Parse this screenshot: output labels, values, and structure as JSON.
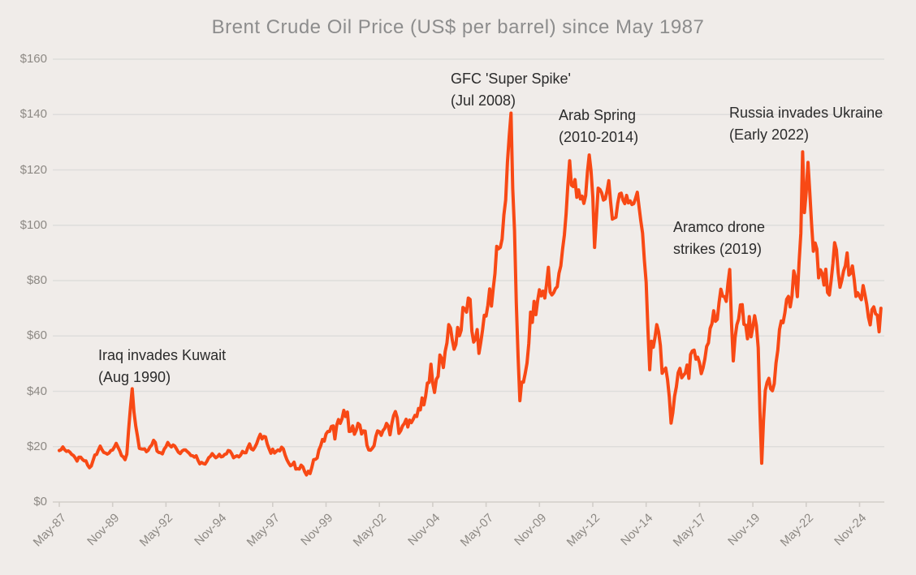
{
  "title": "Brent Crude Oil Price (US$ per barrel) since May 1987",
  "colors": {
    "background": "#f0ece9",
    "line": "#f84915",
    "grid": "#dedddb",
    "axis": "#d2cec9",
    "tick_label": "#8d8984",
    "title": "#8d8d8d",
    "annotation": "#2b2b2b"
  },
  "annotations": {
    "iraq": {
      "line1": "Iraq invades Kuwait",
      "line2": "(Aug 1990)"
    },
    "gfc": {
      "line1": "GFC 'Super Spike'",
      "line2": "(Jul 2008)"
    },
    "arab": {
      "line1": "Arab Spring",
      "line2": "(2010-2014)"
    },
    "aramco": {
      "line1": "Aramco drone",
      "line2": "strikes (2019)"
    },
    "russia": {
      "line1": "Russia invades Ukraine",
      "line2": "(Early 2022)"
    }
  },
  "chart_data": {
    "type": "line",
    "title": "Brent Crude Oil Price (US$ per barrel) since May 1987",
    "xlabel": "",
    "ylabel": "US$ per barrel",
    "ylim": [
      0,
      160
    ],
    "y_tick_step": 20,
    "y_tick_labels": [
      "$0",
      "$20",
      "$40",
      "$60",
      "$80",
      "$100",
      "$120",
      "$140",
      "$160"
    ],
    "x_tick_labels": [
      "May-87",
      "Nov-89",
      "May-92",
      "Nov-94",
      "May-97",
      "Nov-99",
      "May-02",
      "Nov-04",
      "May-07",
      "Nov-09",
      "May-12",
      "Nov-14",
      "May-17",
      "Nov-19",
      "May-22",
      "Nov-24"
    ],
    "x_tick_every_months": 30,
    "x_range": [
      "May-1987",
      "Nov-2025"
    ],
    "frequency": "monthly",
    "grid": "horizontal-only",
    "legend": "none",
    "series": [
      {
        "name": "Brent crude oil price (US$/bbl)",
        "start": "1987-05",
        "values": [
          18.6,
          18.9,
          19.9,
          18.9,
          18.3,
          18.5,
          18.0,
          17.2,
          16.8,
          15.9,
          14.8,
          16.2,
          16.2,
          15.4,
          14.9,
          14.9,
          13.3,
          12.4,
          13.0,
          15.0,
          17.0,
          17.2,
          18.8,
          20.2,
          18.9,
          17.9,
          17.7,
          17.3,
          17.7,
          18.6,
          18.8,
          19.9,
          21.2,
          19.8,
          18.5,
          16.8,
          16.3,
          15.3,
          17.3,
          26.2,
          34.0,
          40.9,
          32.5,
          27.4,
          23.6,
          19.4,
          19.2,
          19.1,
          19.2,
          18.2,
          18.7,
          19.9,
          20.6,
          22.3,
          21.5,
          18.4,
          17.9,
          17.8,
          17.4,
          19.1,
          20.0,
          21.5,
          20.5,
          19.9,
          20.6,
          20.2,
          19.1,
          18.0,
          17.5,
          18.4,
          18.8,
          18.8,
          18.2,
          17.6,
          16.8,
          16.7,
          16.2,
          16.7,
          15.1,
          13.8,
          14.3,
          13.9,
          13.7,
          14.7,
          16.0,
          16.5,
          17.5,
          16.7,
          16.0,
          16.4,
          17.2,
          16.3,
          16.5,
          17.2,
          17.4,
          18.6,
          18.4,
          17.4,
          16.0,
          16.4,
          16.7,
          16.3,
          17.0,
          18.3,
          17.8,
          17.8,
          19.6,
          21.0,
          19.2,
          18.8,
          19.8,
          21.1,
          23.0,
          24.5,
          22.8,
          23.7,
          23.5,
          20.9,
          19.2,
          17.6,
          19.1,
          17.7,
          18.3,
          18.8,
          18.5,
          19.8,
          19.2,
          17.0,
          15.3,
          14.1,
          13.1,
          13.5,
          14.4,
          11.9,
          12.0,
          11.9,
          13.3,
          12.7,
          11.0,
          9.8,
          11.1,
          10.3,
          12.5,
          15.3,
          15.4,
          15.9,
          18.8,
          20.3,
          22.6,
          22.0,
          24.6,
          25.5,
          25.5,
          27.3,
          27.5,
          22.8,
          27.7,
          29.8,
          28.4,
          30.1,
          33.1,
          30.9,
          32.5,
          25.5,
          25.6,
          27.5,
          24.5,
          25.9,
          28.4,
          27.8,
          24.6,
          25.7,
          25.6,
          20.5,
          18.8,
          18.7,
          19.4,
          20.3,
          23.7,
          25.7,
          25.4,
          24.1,
          25.8,
          26.6,
          28.4,
          27.5,
          24.3,
          28.3,
          31.2,
          32.7,
          30.5,
          24.8,
          25.8,
          27.5,
          28.4,
          29.9,
          27.1,
          29.6,
          28.7,
          29.9,
          31.3,
          30.9,
          33.8,
          33.3,
          37.6,
          35.1,
          38.2,
          43.0,
          43.2,
          49.8,
          42.9,
          39.6,
          44.3,
          45.4,
          53.1,
          51.9,
          48.6,
          54.4,
          57.5,
          64.1,
          62.9,
          58.5,
          55.2,
          56.9,
          63.1,
          60.1,
          62.1,
          70.3,
          69.8,
          68.6,
          73.7,
          73.2,
          61.7,
          57.8,
          58.9,
          62.3,
          53.7,
          57.6,
          62.1,
          67.5,
          67.2,
          71.1,
          77.0,
          70.8,
          77.2,
          82.5,
          92.4,
          91.5,
          92.0,
          95.0,
          103.7,
          109.1,
          122.8,
          132.3,
          140.5,
          113.2,
          98.1,
          71.9,
          52.5,
          36.6,
          43.3,
          43.3,
          46.5,
          50.2,
          57.3,
          68.6,
          64.9,
          72.5,
          67.7,
          72.8,
          76.7,
          74.5,
          76.2,
          73.7,
          78.8,
          84.8,
          75.9,
          74.8,
          75.6,
          77.1,
          77.8,
          82.7,
          85.3,
          91.4,
          96.5,
          104.0,
          114.6,
          123.3,
          114.5,
          114.0,
          116.5,
          110.1,
          112.8,
          109.5,
          110.5,
          107.9,
          110.7,
          119.3,
          125.4,
          119.8,
          110.3,
          92.0,
          102.6,
          113.4,
          112.9,
          111.7,
          109.1,
          109.5,
          112.3,
          116.1,
          108.5,
          102.2,
          102.6,
          102.9,
          107.9,
          111.3,
          111.6,
          109.1,
          107.8,
          110.8,
          108.1,
          108.8,
          107.5,
          107.8,
          109.7,
          111.9,
          106.8,
          101.6,
          97.1,
          87.4,
          79.4,
          62.3,
          47.8,
          58.1,
          55.9,
          59.5,
          64.1,
          61.5,
          56.6,
          46.5,
          47.6,
          48.4,
          44.3,
          38.0,
          28.5,
          32.2,
          38.2,
          41.6,
          46.7,
          48.3,
          44.9,
          45.8,
          46.6,
          49.5,
          44.7,
          53.3,
          54.6,
          54.9,
          51.6,
          52.3,
          50.3,
          46.4,
          48.5,
          51.7,
          56.2,
          57.5,
          62.7,
          64.4,
          69.1,
          65.3,
          66.0,
          72.1,
          76.9,
          74.4,
          74.2,
          72.5,
          78.9,
          84.0,
          64.8,
          51.0,
          59.4,
          64.0,
          66.1,
          71.2,
          71.3,
          64.2,
          63.9,
          59.0,
          67.0,
          59.7,
          63.2,
          67.3,
          63.7,
          55.7,
          32.0,
          14.0,
          29.4,
          40.3,
          43.2,
          44.7,
          40.9,
          40.2,
          42.7,
          50.2,
          54.8,
          62.3,
          65.4,
          64.8,
          68.3,
          73.2,
          74.3,
          70.5,
          74.5,
          83.5,
          81.0,
          74.2,
          86.5,
          97.1,
          126.5,
          104.6,
          112.0,
          122.7,
          111.9,
          100.5,
          90.6,
          93.6,
          91.4,
          81.0,
          83.9,
          82.6,
          78.4,
          84.1,
          75.7,
          74.8,
          80.1,
          86.2,
          93.7,
          91.1,
          82.9,
          77.6,
          80.1,
          83.5,
          85.4,
          90.0,
          82.0,
          82.6,
          85.3,
          80.4,
          74.3,
          75.6,
          74.3,
          73.1,
          78.2,
          75.0,
          71.5,
          66.8,
          64.0,
          69.5,
          70.5,
          68.0,
          67.5,
          61.5,
          70.0
        ]
      }
    ]
  }
}
